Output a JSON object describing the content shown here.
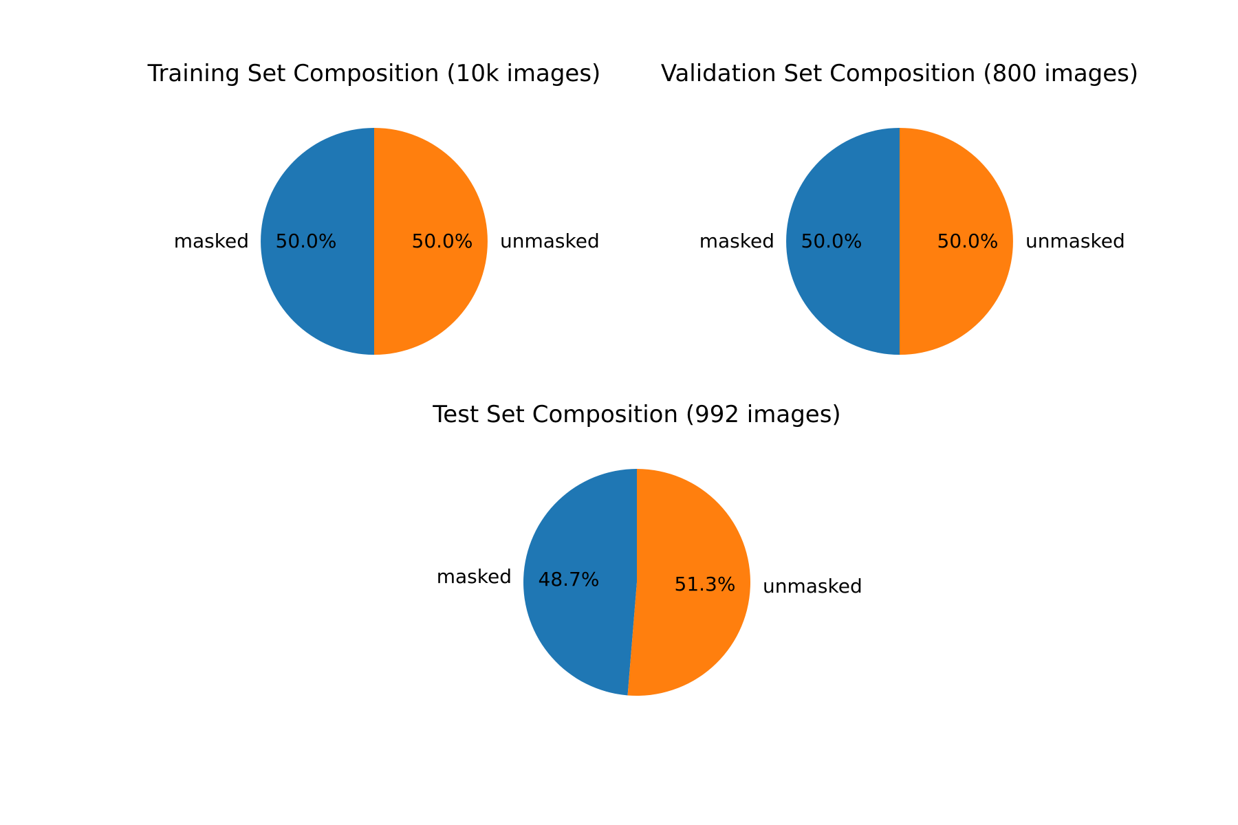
{
  "chart_data": [
    {
      "type": "pie",
      "title": "Training Set Composition (10k images)",
      "categories": [
        "masked",
        "unmasked"
      ],
      "values": [
        50.0,
        50.0
      ],
      "value_labels": [
        "50.0%",
        "50.0%"
      ],
      "colors": [
        "#1f77b4",
        "#ff7f0e"
      ],
      "start_angle_deg": 90,
      "direction": "counterclockwise"
    },
    {
      "type": "pie",
      "title": "Validation Set Composition (800 images)",
      "categories": [
        "masked",
        "unmasked"
      ],
      "values": [
        50.0,
        50.0
      ],
      "value_labels": [
        "50.0%",
        "50.0%"
      ],
      "colors": [
        "#1f77b4",
        "#ff7f0e"
      ],
      "start_angle_deg": 90,
      "direction": "counterclockwise"
    },
    {
      "type": "pie",
      "title": "Test Set Composition (992 images)",
      "categories": [
        "masked",
        "unmasked"
      ],
      "values": [
        48.7,
        51.3
      ],
      "value_labels": [
        "48.7%",
        "51.3%"
      ],
      "colors": [
        "#1f77b4",
        "#ff7f0e"
      ],
      "start_angle_deg": 90,
      "direction": "counterclockwise"
    }
  ]
}
